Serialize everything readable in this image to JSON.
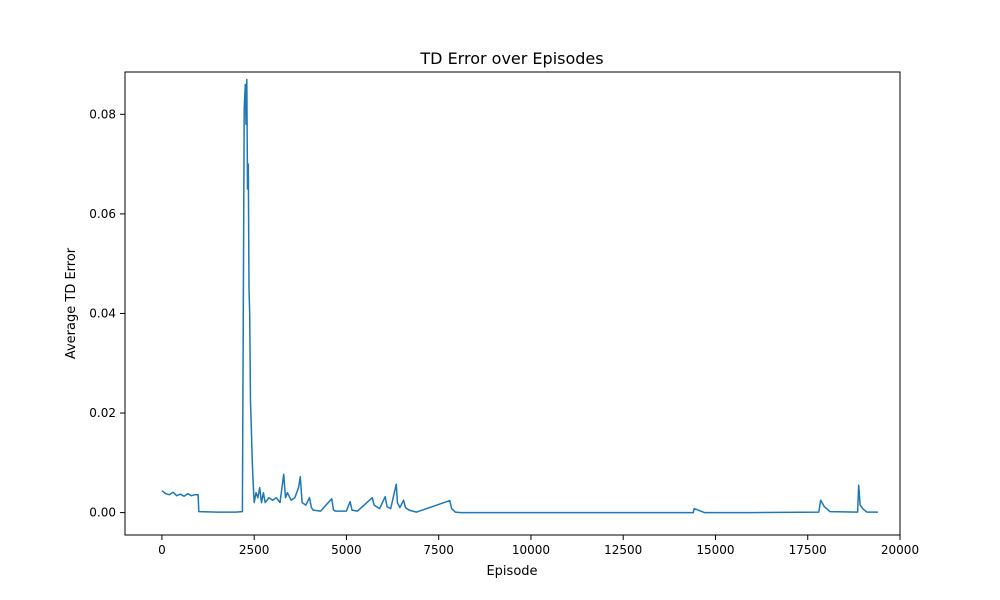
{
  "chart_data": {
    "type": "line",
    "title": "TD Error over Episodes",
    "xlabel": "Episode",
    "ylabel": "Average TD Error",
    "xlim": [
      -1000,
      20000
    ],
    "ylim": [
      -0.0045,
      0.0885
    ],
    "xticks": [
      0,
      2500,
      5000,
      7500,
      10000,
      12500,
      15000,
      17500,
      20000
    ],
    "xtick_labels": [
      "0",
      "2500",
      "5000",
      "7500",
      "10000",
      "12500",
      "15000",
      "17500",
      "20000"
    ],
    "yticks": [
      0.0,
      0.02,
      0.04,
      0.06,
      0.08
    ],
    "ytick_labels": [
      "0.00",
      "0.02",
      "0.04",
      "0.06",
      "0.08"
    ],
    "grid": false,
    "legend": "none",
    "series": [
      {
        "color": "#1f77b4",
        "x": [
          0,
          100,
          200,
          300,
          400,
          500,
          600,
          700,
          800,
          900,
          980,
          1000,
          1500,
          2000,
          2180,
          2230,
          2260,
          2280,
          2300,
          2320,
          2340,
          2360,
          2380,
          2400,
          2420,
          2440,
          2460,
          2480,
          2500,
          2550,
          2600,
          2650,
          2700,
          2750,
          2800,
          2900,
          3000,
          3100,
          3200,
          3300,
          3350,
          3400,
          3500,
          3600,
          3700,
          3750,
          3800,
          3900,
          4000,
          4050,
          4100,
          4300,
          4600,
          4650,
          4700,
          5000,
          5100,
          5150,
          5300,
          5700,
          5750,
          5900,
          6050,
          6100,
          6200,
          6350,
          6380,
          6450,
          6550,
          6600,
          6700,
          6900,
          7800,
          7850,
          7950,
          8100,
          10000,
          12500,
          14400,
          14420,
          14600,
          14700,
          16000,
          17800,
          17850,
          17950,
          18100,
          18850,
          18880,
          18920,
          19000,
          19100,
          19400
        ],
        "y": [
          0.0044,
          0.0038,
          0.0036,
          0.0041,
          0.0034,
          0.0037,
          0.0033,
          0.0038,
          0.0034,
          0.0036,
          0.0036,
          0.0002,
          0.0001,
          0.0001,
          0.0002,
          0.081,
          0.086,
          0.078,
          0.087,
          0.065,
          0.07,
          0.045,
          0.04,
          0.022,
          0.018,
          0.012,
          0.008,
          0.005,
          0.002,
          0.004,
          0.003,
          0.005,
          0.002,
          0.004,
          0.002,
          0.003,
          0.0025,
          0.003,
          0.002,
          0.0077,
          0.003,
          0.004,
          0.0025,
          0.003,
          0.005,
          0.0072,
          0.002,
          0.0015,
          0.003,
          0.001,
          0.0005,
          0.0003,
          0.0028,
          0.0005,
          0.0003,
          0.0003,
          0.0022,
          0.0005,
          0.0003,
          0.003,
          0.0015,
          0.0008,
          0.0032,
          0.0012,
          0.0008,
          0.0057,
          0.002,
          0.001,
          0.0025,
          0.001,
          0.0005,
          0.0001,
          0.0024,
          0.0008,
          0.0001,
          0.0,
          0.0,
          0.0,
          0.0,
          0.0008,
          0.0003,
          0.0,
          0.0,
          0.0001,
          0.0025,
          0.0012,
          0.0002,
          0.0001,
          0.0055,
          0.0015,
          0.0007,
          0.0001,
          0.0001
        ]
      }
    ]
  }
}
